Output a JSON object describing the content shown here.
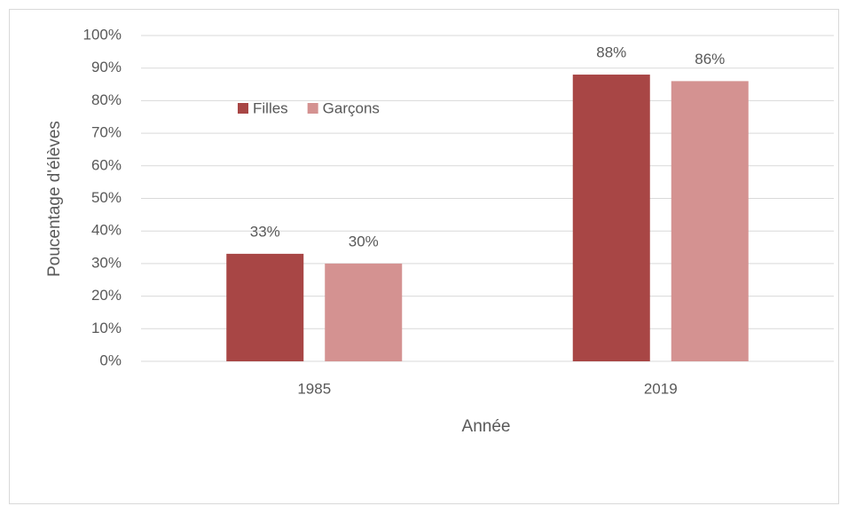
{
  "chart_data": {
    "type": "bar",
    "categories": [
      "1985",
      "2019"
    ],
    "series": [
      {
        "name": "Filles",
        "color": "#a84645",
        "values": [
          33,
          88
        ],
        "value_labels": [
          "33%",
          "88%"
        ]
      },
      {
        "name": "Garçons",
        "color": "#d49291",
        "values": [
          30,
          86
        ],
        "value_labels": [
          "30%",
          "86%"
        ]
      }
    ],
    "xlabel": "Année",
    "ylabel": "Poucentage d'élèves",
    "ylim": [
      0,
      100
    ],
    "yticks": [
      {
        "value": 0,
        "label": "0%"
      },
      {
        "value": 10,
        "label": "10%"
      },
      {
        "value": 20,
        "label": "20%"
      },
      {
        "value": 30,
        "label": "30%"
      },
      {
        "value": 40,
        "label": "40%"
      },
      {
        "value": 50,
        "label": "50%"
      },
      {
        "value": 60,
        "label": "60%"
      },
      {
        "value": 70,
        "label": "70%"
      },
      {
        "value": 80,
        "label": "80%"
      },
      {
        "value": 90,
        "label": "90%"
      },
      {
        "value": 100,
        "label": "100%"
      }
    ],
    "grid": true,
    "legend": "upper left"
  }
}
